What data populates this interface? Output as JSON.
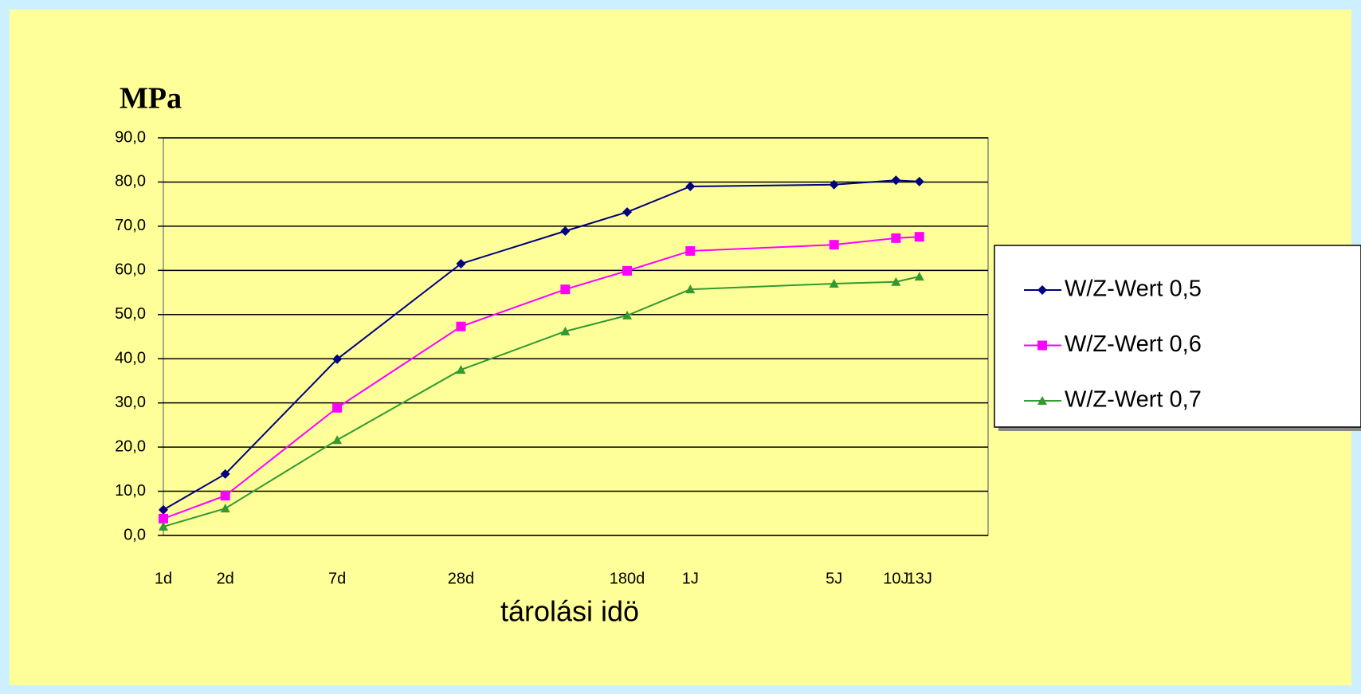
{
  "chart_data": {
    "type": "line",
    "y_label": "MPa",
    "x_label": "tárolási idö",
    "x": [
      1,
      2,
      7,
      28,
      90,
      180,
      365,
      1825,
      3650,
      4745
    ],
    "xscale": "log",
    "xlim": [
      1,
      10240
    ],
    "xticks": [
      {
        "value": 1,
        "label": "1d"
      },
      {
        "value": 2,
        "label": "2d"
      },
      {
        "value": 7,
        "label": "7d"
      },
      {
        "value": 28,
        "label": "28d"
      },
      {
        "value": 180,
        "label": "180d"
      },
      {
        "value": 365,
        "label": "1J"
      },
      {
        "value": 1825,
        "label": "5J"
      },
      {
        "value": 3650,
        "label": "10J"
      },
      {
        "value": 4745,
        "label": "13J"
      }
    ],
    "ylim": [
      0,
      90
    ],
    "yticks": [
      {
        "value": 0,
        "label": "0,0"
      },
      {
        "value": 10,
        "label": "10,0"
      },
      {
        "value": 20,
        "label": "20,0"
      },
      {
        "value": 30,
        "label": "30,0"
      },
      {
        "value": 40,
        "label": "40,0"
      },
      {
        "value": 50,
        "label": "50,0"
      },
      {
        "value": 60,
        "label": "60,0"
      },
      {
        "value": 70,
        "label": "70,0"
      },
      {
        "value": 80,
        "label": "80,0"
      },
      {
        "value": 90,
        "label": "90,0"
      }
    ],
    "grid": true,
    "legend": "right",
    "series": [
      {
        "name": "W/Z-Wert 0,5",
        "color": "#000080",
        "marker": "diamond",
        "values": [
          5.8,
          13.9,
          39.9,
          61.5,
          68.9,
          73.2,
          79.0,
          79.4,
          80.4,
          80.1
        ]
      },
      {
        "name": "W/Z-Wert 0,6",
        "color": "#ff00ff",
        "marker": "square",
        "values": [
          3.8,
          9.0,
          28.9,
          47.3,
          55.7,
          59.9,
          64.4,
          65.8,
          67.3,
          67.6
        ]
      },
      {
        "name": "W/Z-Wert 0,7",
        "color": "#339933",
        "marker": "triangle",
        "values": [
          2.0,
          6.1,
          21.6,
          37.5,
          46.2,
          49.8,
          55.7,
          57.0,
          57.4,
          58.6
        ]
      }
    ]
  }
}
